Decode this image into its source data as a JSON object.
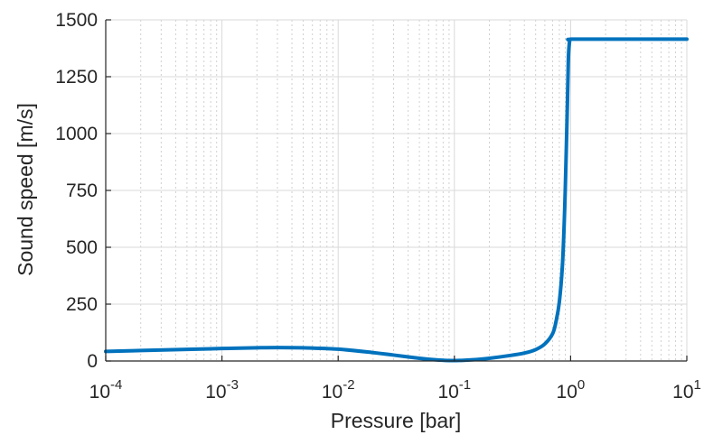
{
  "chart_data": {
    "type": "line",
    "xlabel": "Pressure [bar]",
    "ylabel": "Sound speed [m/s]",
    "xscale": "log",
    "xlim": [
      0.0001,
      10
    ],
    "ylim": [
      0,
      1500
    ],
    "grid": true,
    "minor_grid_x": true,
    "x_ticks": [
      {
        "value": 0.0001,
        "base": "10",
        "exp": "-4"
      },
      {
        "value": 0.001,
        "base": "10",
        "exp": "-3"
      },
      {
        "value": 0.01,
        "base": "10",
        "exp": "-2"
      },
      {
        "value": 0.1,
        "base": "10",
        "exp": "-1"
      },
      {
        "value": 1,
        "base": "10",
        "exp": "0"
      },
      {
        "value": 10,
        "base": "10",
        "exp": "1"
      }
    ],
    "y_ticks": [
      {
        "value": 0,
        "label": "0"
      },
      {
        "value": 250,
        "label": "250"
      },
      {
        "value": 500,
        "label": "500"
      },
      {
        "value": 750,
        "label": "750"
      },
      {
        "value": 1000,
        "label": "1000"
      },
      {
        "value": 1250,
        "label": "1250"
      },
      {
        "value": 1500,
        "label": "1500"
      }
    ],
    "series": [
      {
        "color": "#0072bd",
        "x": [
          0.0001,
          0.0002,
          0.0005,
          0.001,
          0.002,
          0.003,
          0.005,
          0.01,
          0.02,
          0.03,
          0.05,
          0.07,
          0.09,
          0.1,
          0.12,
          0.15,
          0.2,
          0.3,
          0.4,
          0.5,
          0.6,
          0.7,
          0.75,
          0.8,
          0.85,
          0.88,
          0.9,
          0.92,
          0.94,
          0.95,
          0.96,
          0.98,
          1.0,
          2,
          5,
          10
        ],
        "y": [
          42,
          46,
          51,
          55,
          58,
          59,
          58,
          52,
          37,
          26,
          12,
          5,
          2,
          2,
          3,
          6,
          12,
          24,
          35,
          50,
          75,
          120,
          175,
          260,
          420,
          600,
          760,
          950,
          1150,
          1260,
          1350,
          1405,
          1415,
          1415,
          1415,
          1415
        ]
      }
    ]
  }
}
